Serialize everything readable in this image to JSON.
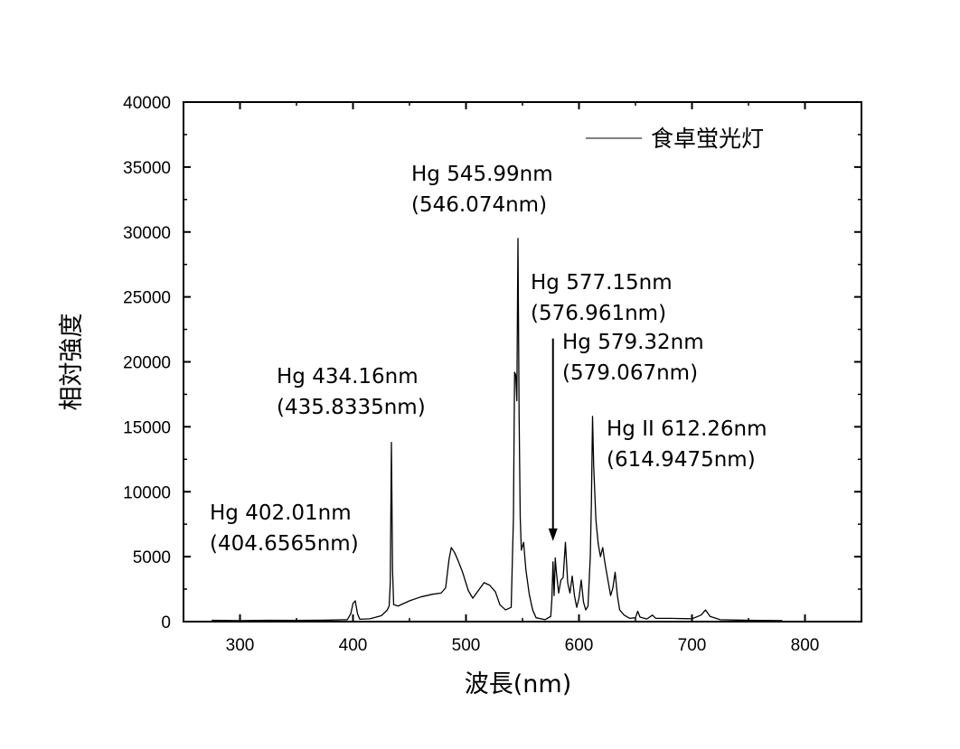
{
  "chart_data": {
    "type": "line",
    "xlabel": "波長(nm)",
    "ylabel": "相対強度",
    "xlim": [
      250,
      850
    ],
    "ylim": [
      0,
      40000
    ],
    "xticks": [
      300,
      400,
      500,
      600,
      700,
      800
    ],
    "yticks": [
      0,
      5000,
      10000,
      15000,
      20000,
      25000,
      30000,
      35000,
      40000
    ],
    "grid": false,
    "legend": {
      "position": "top-right"
    },
    "series": [
      {
        "name": "食卓蛍光灯",
        "color": "#000000",
        "points": [
          [
            275,
            100
          ],
          [
            300,
            80
          ],
          [
            325,
            100
          ],
          [
            350,
            90
          ],
          [
            375,
            110
          ],
          [
            395,
            150
          ],
          [
            398,
            600
          ],
          [
            400,
            1400
          ],
          [
            402,
            1600
          ],
          [
            404,
            600
          ],
          [
            406,
            180
          ],
          [
            415,
            220
          ],
          [
            425,
            450
          ],
          [
            430,
            850
          ],
          [
            432,
            1200
          ],
          [
            433,
            3000
          ],
          [
            434,
            13800
          ],
          [
            435,
            4000
          ],
          [
            436,
            1300
          ],
          [
            440,
            1200
          ],
          [
            450,
            1600
          ],
          [
            460,
            1900
          ],
          [
            470,
            2100
          ],
          [
            478,
            2200
          ],
          [
            482,
            2600
          ],
          [
            485,
            4800
          ],
          [
            487,
            5700
          ],
          [
            490,
            5300
          ],
          [
            493,
            4700
          ],
          [
            497,
            3800
          ],
          [
            502,
            2400
          ],
          [
            506,
            1800
          ],
          [
            511,
            2400
          ],
          [
            516,
            3000
          ],
          [
            521,
            2800
          ],
          [
            526,
            2300
          ],
          [
            530,
            1300
          ],
          [
            535,
            900
          ],
          [
            540,
            1100
          ],
          [
            542,
            8000
          ],
          [
            543,
            19200
          ],
          [
            544,
            19000
          ],
          [
            545,
            17000
          ],
          [
            546,
            29500
          ],
          [
            547,
            16000
          ],
          [
            548,
            8000
          ],
          [
            549,
            5500
          ],
          [
            551,
            6100
          ],
          [
            553,
            4000
          ],
          [
            556,
            2100
          ],
          [
            559,
            900
          ],
          [
            562,
            300
          ],
          [
            570,
            150
          ],
          [
            575,
            400
          ],
          [
            576,
            1700
          ],
          [
            577,
            4600
          ],
          [
            578,
            2000
          ],
          [
            579,
            4900
          ],
          [
            580,
            3800
          ],
          [
            582,
            2200
          ],
          [
            584,
            3200
          ],
          [
            586,
            3400
          ],
          [
            588,
            6100
          ],
          [
            590,
            3000
          ],
          [
            592,
            2200
          ],
          [
            594,
            3500
          ],
          [
            596,
            2000
          ],
          [
            598,
            1100
          ],
          [
            600,
            1800
          ],
          [
            602,
            3200
          ],
          [
            604,
            1500
          ],
          [
            606,
            900
          ],
          [
            608,
            1200
          ],
          [
            610,
            5000
          ],
          [
            611,
            9200
          ],
          [
            612,
            15800
          ],
          [
            613,
            12000
          ],
          [
            615,
            7800
          ],
          [
            617,
            6000
          ],
          [
            619,
            5000
          ],
          [
            621,
            5700
          ],
          [
            623,
            4500
          ],
          [
            625,
            3500
          ],
          [
            628,
            2000
          ],
          [
            630,
            2600
          ],
          [
            632,
            3800
          ],
          [
            634,
            2000
          ],
          [
            636,
            900
          ],
          [
            640,
            500
          ],
          [
            645,
            250
          ],
          [
            650,
            300
          ],
          [
            652,
            800
          ],
          [
            654,
            350
          ],
          [
            660,
            200
          ],
          [
            665,
            500
          ],
          [
            668,
            250
          ],
          [
            680,
            250
          ],
          [
            700,
            220
          ],
          [
            708,
            500
          ],
          [
            712,
            900
          ],
          [
            716,
            400
          ],
          [
            725,
            150
          ],
          [
            750,
            100
          ],
          [
            780,
            80
          ]
        ]
      }
    ],
    "annotations": [
      {
        "lines": [
          "Hg 402.01nm",
          "(404.6565nm)"
        ]
      },
      {
        "lines": [
          "Hg 434.16nm",
          "(435.8335nm)"
        ]
      },
      {
        "lines": [
          "Hg 545.99nm",
          "(546.074nm)"
        ]
      },
      {
        "lines": [
          "Hg 577.15nm",
          "(576.961nm)"
        ]
      },
      {
        "lines": [
          "Hg 579.32nm",
          "(579.067nm)"
        ]
      },
      {
        "lines": [
          "Hg II 612.26nm",
          "(614.9475nm)"
        ]
      }
    ],
    "arrow": {
      "x": 577,
      "y_from": 21800,
      "y_to": 6200
    }
  }
}
